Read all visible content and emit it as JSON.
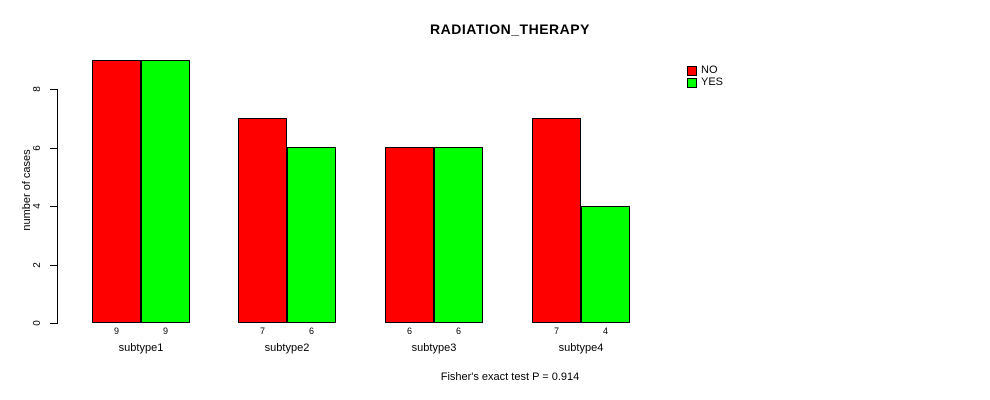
{
  "chart_data": {
    "type": "bar",
    "title": "RADIATION_THERAPY",
    "ylabel": "number of cases",
    "xlabel": "",
    "categories": [
      "subtype1",
      "subtype2",
      "subtype3",
      "subtype4"
    ],
    "series": [
      {
        "name": "NO",
        "color": "#ff0000",
        "values": [
          9,
          7,
          6,
          7
        ]
      },
      {
        "name": "YES",
        "color": "#00ff00",
        "values": [
          9,
          6,
          6,
          4
        ]
      }
    ],
    "yticks": [
      0,
      2,
      4,
      6,
      8
    ],
    "ylim": [
      0,
      9
    ],
    "grid": false,
    "legend_position": "top-right",
    "legend_entries": [
      "NO",
      "YES"
    ],
    "annotation": "Fisher's exact test P = 0.914",
    "bar_border_color": "#000000",
    "background_color": "#ffffff"
  }
}
